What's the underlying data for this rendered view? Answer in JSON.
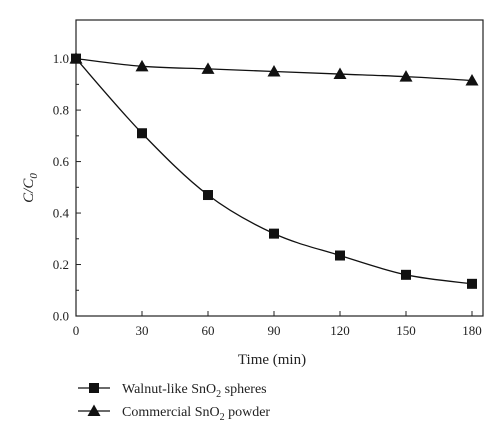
{
  "chart_data": {
    "type": "line",
    "xlabel": "Time (min)",
    "ylabel": {
      "main": "C/C",
      "sub": "0"
    },
    "xlim": [
      0,
      185
    ],
    "ylim": [
      0,
      1.15
    ],
    "xticks": [
      "0",
      "30",
      "60",
      "90",
      "120",
      "150",
      "180"
    ],
    "yticks": [
      "0.0",
      "0.2",
      "0.4",
      "0.6",
      "0.8",
      "1.0"
    ],
    "grid": false,
    "legend_position": "bottom-left",
    "series": [
      {
        "name": "Walnut-like SnO2 spheres",
        "legend": {
          "pre": "Walnut-like SnO",
          "sub": "2",
          "post": " spheres"
        },
        "marker": "square",
        "x": [
          0,
          30,
          60,
          90,
          120,
          150,
          180
        ],
        "y": [
          1.0,
          0.71,
          0.47,
          0.32,
          0.235,
          0.16,
          0.125
        ]
      },
      {
        "name": "Commercial SnO2 powder",
        "legend": {
          "pre": "Commercial SnO",
          "sub": "2",
          "post": " powder"
        },
        "marker": "triangle",
        "x": [
          0,
          30,
          60,
          90,
          120,
          150,
          180
        ],
        "y": [
          1.0,
          0.97,
          0.96,
          0.95,
          0.94,
          0.93,
          0.915
        ]
      }
    ]
  }
}
